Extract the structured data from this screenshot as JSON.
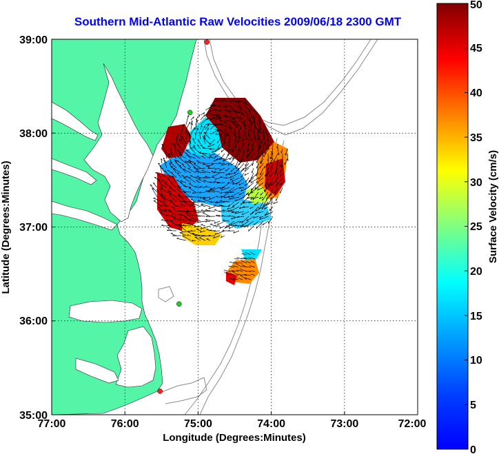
{
  "map": {
    "title": "Southern Mid-Atlantic Raw Velocities 2009/06/18 2300 GMT",
    "xlabel": "Longitude (Degrees:Minutes)",
    "ylabel": "Latitude (Degrees:Minutes)",
    "x_ticks": [
      "77:00",
      "76:00",
      "75:00",
      "74:00",
      "73:00",
      "72:00"
    ],
    "y_ticks": [
      "39:00",
      "38:00",
      "37:00",
      "36:00",
      "35:00"
    ],
    "lon_range": [
      -77,
      -72
    ],
    "lat_range": [
      35,
      39
    ],
    "grid": "dotted",
    "land_color": "#55f5a8",
    "station_markers": [
      {
        "lon": -74.88,
        "lat": 38.97,
        "color": "#ff2020"
      },
      {
        "lon": -75.11,
        "lat": 38.22,
        "color": "#22cc22"
      },
      {
        "lon": -75.26,
        "lat": 36.18,
        "color": "#22cc22"
      },
      {
        "lon": -75.52,
        "lat": 35.25,
        "color": "#ff2020"
      }
    ]
  },
  "colorbar": {
    "label": "Surface Velocity (cm/s)",
    "ticks": [
      "0",
      "5",
      "10",
      "15",
      "20",
      "25",
      "30",
      "35",
      "40",
      "45",
      "50"
    ],
    "range": [
      0,
      50
    ],
    "colormap": "jet"
  }
}
